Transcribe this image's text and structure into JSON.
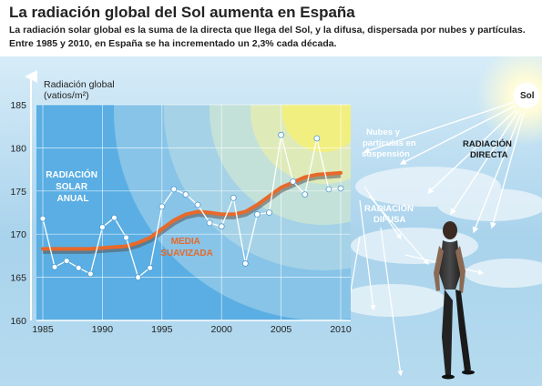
{
  "header": {
    "title": "La radiación global del Sol aumenta en España",
    "subtitle_line1": "La radiación solar global es la suma de la directa que llega del Sol, y la difusa, dispersada por nubes y partículas.",
    "subtitle_line2": "Entre 1985 y 2010, en España se ha incrementado un 2,3% cada década."
  },
  "colors": {
    "sky": "#a9d3ec",
    "chart_band": "#5aaee3",
    "sun": "#f3f07a",
    "annual_series": "#ffffff",
    "smoothed_series": "#e8692a",
    "smoothed_shadow": "#555555"
  },
  "illustration": {
    "sun_label": "Sol",
    "clouds_label": [
      "Nubes y",
      "partículas en",
      "suspensión"
    ],
    "direct_label": [
      "RADIACIÓN",
      "DIRECTA"
    ],
    "diffuse_label": [
      "RADIACIÓN",
      "DIFUSA"
    ]
  },
  "chart_data": {
    "type": "line",
    "title": "La radiación global del Sol aumenta en España",
    "ylabel_line1": "Radiación global",
    "ylabel_line2": "(vatios/m²)",
    "xlim": [
      1985,
      2010
    ],
    "ylim": [
      160,
      185
    ],
    "yticks": [
      160,
      165,
      170,
      175,
      180,
      185
    ],
    "xticks": [
      1985,
      1990,
      1995,
      2000,
      2005,
      2010
    ],
    "series": [
      {
        "name": "RADIACIÓN SOLAR ANUAL",
        "label_lines": [
          "RADIACIÓN",
          "SOLAR",
          "ANUAL"
        ],
        "x": [
          1985,
          1986,
          1987,
          1988,
          1989,
          1990,
          1991,
          1992,
          1993,
          1994,
          1995,
          1996,
          1997,
          1998,
          1999,
          2000,
          2001,
          2002,
          2003,
          2004,
          2005,
          2006,
          2007,
          2008,
          2009,
          2010
        ],
        "values": [
          171.8,
          166.2,
          166.9,
          166.1,
          165.4,
          170.8,
          171.9,
          169.6,
          165.0,
          166.1,
          173.2,
          175.2,
          174.6,
          173.4,
          171.3,
          170.9,
          174.2,
          166.6,
          172.3,
          172.5,
          181.5,
          176.1,
          174.6,
          181.1,
          175.2,
          175.3
        ]
      },
      {
        "name": "MEDIA SUAVIZADA",
        "label_lines": [
          "MEDIA",
          "SUAVIZADA"
        ],
        "x": [
          1985,
          1986,
          1987,
          1988,
          1989,
          1990,
          1991,
          1992,
          1993,
          1994,
          1995,
          1996,
          1997,
          1998,
          1999,
          2000,
          2001,
          2002,
          2003,
          2004,
          2005,
          2006,
          2007,
          2008,
          2009,
          2010
        ],
        "values": [
          168.3,
          168.3,
          168.3,
          168.3,
          168.3,
          168.4,
          168.5,
          168.6,
          169.0,
          169.6,
          170.6,
          171.6,
          172.3,
          172.6,
          172.5,
          172.3,
          172.3,
          172.6,
          173.4,
          174.4,
          175.4,
          176.0,
          176.6,
          176.9,
          177.0,
          177.1
        ]
      }
    ]
  }
}
